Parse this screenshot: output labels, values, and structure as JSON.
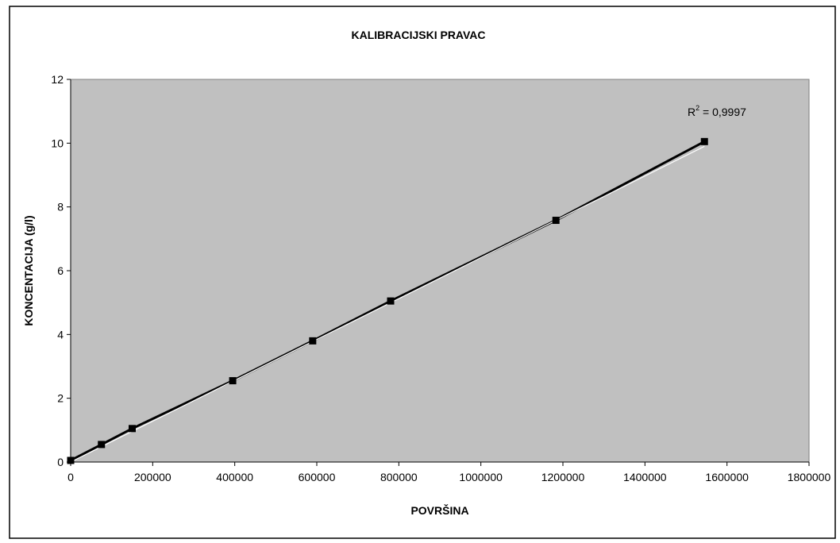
{
  "chart_data": {
    "type": "scatter",
    "title": "KALIBRACIJSKI PRAVAC",
    "xlabel": "POVRŠINA",
    "ylabel": "KONCENTACIJA (g/l)",
    "xlim": [
      0,
      1800000
    ],
    "ylim": [
      0,
      12
    ],
    "x_ticks": [
      0,
      200000,
      400000,
      600000,
      800000,
      1000000,
      1200000,
      1400000,
      1600000,
      1800000
    ],
    "y_ticks": [
      0,
      2,
      4,
      6,
      8,
      10,
      12
    ],
    "x_tick_labels": [
      "0",
      "200000",
      "400000",
      "600000",
      "800000",
      "1000000",
      "1200000",
      "1400000",
      "1600000",
      "1800000"
    ],
    "y_tick_labels": [
      "0",
      "2",
      "4",
      "6",
      "8",
      "10",
      "12"
    ],
    "grid": false,
    "legend": "none",
    "series": [
      {
        "x": [
          0,
          75000,
          150000,
          395000,
          590000,
          780000,
          1183000,
          1545000
        ],
        "y": [
          0.05,
          0.55,
          1.05,
          2.55,
          3.8,
          5.05,
          7.58,
          10.05
        ]
      }
    ],
    "trendline": {
      "type": "linear",
      "x_range": [
        0,
        1545000
      ],
      "y_range": [
        0,
        9.9
      ]
    },
    "annotation": {
      "r2_label": "R",
      "r2_sup": "2",
      "r2_value": " = 0,9997"
    },
    "colors": {
      "plot_bg": "#c0c0c0",
      "marker": "#000000",
      "line": "#000000",
      "trendline": "#ffffff"
    }
  }
}
